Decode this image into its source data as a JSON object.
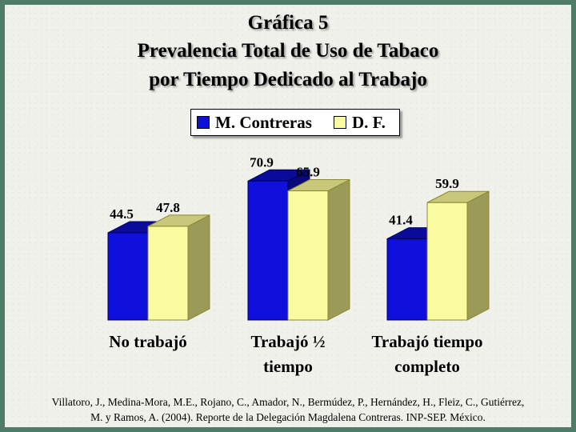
{
  "chart_data": {
    "type": "bar",
    "title": "Gráfica 5",
    "subtitle_lines": [
      "Prevalencia Total de Uso de Tabaco",
      "por Tiempo Dedicado al Trabajo"
    ],
    "categories": [
      [
        "No trabajó"
      ],
      [
        "Trabajó ½",
        "tiempo"
      ],
      [
        "Trabajó tiempo",
        "completo"
      ]
    ],
    "series": [
      {
        "name": "M. Contreras",
        "color": "#1010dc",
        "values": [
          44.5,
          70.9,
          41.4
        ]
      },
      {
        "name": "D. F.",
        "color": "#fafaa0",
        "values": [
          47.8,
          65.9,
          59.9
        ]
      }
    ],
    "value_labels": [
      [
        "44.5",
        "70.9",
        "41.4"
      ],
      [
        "47.8",
        "65.9",
        "59.9"
      ]
    ],
    "ylim": [
      0,
      100
    ],
    "grid": false,
    "legend_position": "top-center",
    "style": "3d"
  },
  "source_lines": [
    "Villatoro, J., Medina-Mora, M.E., Rojano, C., Amador, N., Bermúdez, P., Hernández, H., Fleiz, C., Gutiérrez,",
    "M. y Ramos, A. (2004). Reporte de la Delegación Magdalena Contreras. INP-SEP. México."
  ]
}
